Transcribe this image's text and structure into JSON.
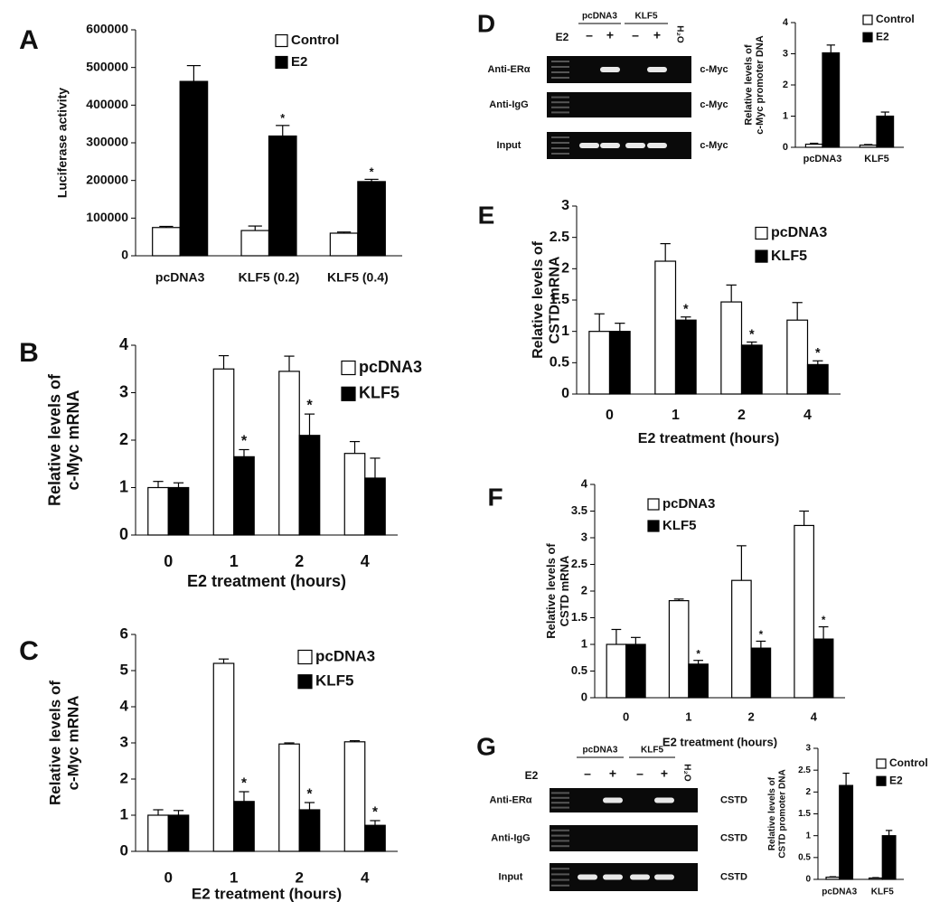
{
  "chart_data": [
    {
      "type": "bar",
      "panel": "A",
      "ylabel": [
        "Luciferase activity"
      ],
      "categories": [
        "pcDNA3",
        "KLF5 (0.2)",
        "KLF5 (0.4)"
      ],
      "series": [
        {
          "name": "Control",
          "color": "#ffffff",
          "values": [
            75000,
            67000,
            60000
          ],
          "errors": [
            3000,
            12000,
            3000
          ],
          "notes": [
            null,
            null,
            null
          ]
        },
        {
          "name": "E2",
          "color": "#000000",
          "values": [
            463000,
            318000,
            197000
          ],
          "errors": [
            42000,
            28000,
            6000
          ],
          "notes": [
            null,
            "*",
            "*"
          ]
        }
      ],
      "ylim": [
        0,
        600000
      ],
      "yticks": [
        0,
        100000,
        200000,
        300000,
        400000,
        500000,
        600000
      ]
    },
    {
      "type": "bar",
      "panel": "B",
      "ylabel": [
        "Relative levels of",
        "c-Myc mRNA"
      ],
      "xlabel": "E2 treatment (hours)",
      "categories": [
        "0",
        "1",
        "2",
        "4"
      ],
      "series": [
        {
          "name": "pcDNA3",
          "color": "#ffffff",
          "values": [
            1,
            3.5,
            3.45,
            1.72
          ],
          "errors": [
            0.13,
            0.28,
            0.32,
            0.25
          ],
          "notes": [
            null,
            null,
            null,
            null
          ]
        },
        {
          "name": "KLF5",
          "color": "#000000",
          "values": [
            1,
            1.65,
            2.1,
            1.2
          ],
          "errors": [
            0.1,
            0.15,
            0.45,
            0.42
          ],
          "notes": [
            null,
            "*",
            "*",
            null
          ]
        }
      ],
      "ylim": [
        0,
        4
      ],
      "yticks": [
        0,
        1,
        2,
        3,
        4
      ]
    },
    {
      "type": "bar",
      "panel": "C",
      "ylabel": [
        "Relative levels of",
        "c-Myc mRNA"
      ],
      "xlabel": "E2 treatment (hours)",
      "categories": [
        "0",
        "1",
        "2",
        "4"
      ],
      "series": [
        {
          "name": "pcDNA3",
          "color": "#ffffff",
          "values": [
            1,
            5.2,
            2.97,
            3.03
          ],
          "errors": [
            0.15,
            0.12,
            0.03,
            0.03
          ],
          "notes": [
            null,
            null,
            null,
            null
          ]
        },
        {
          "name": "KLF5",
          "color": "#000000",
          "values": [
            1,
            1.38,
            1.15,
            0.72
          ],
          "errors": [
            0.13,
            0.27,
            0.2,
            0.13
          ],
          "notes": [
            null,
            "*",
            "*",
            "*"
          ]
        }
      ],
      "ylim": [
        0,
        6
      ],
      "yticks": [
        0,
        1,
        2,
        3,
        4,
        5,
        6
      ]
    },
    {
      "type": "bar",
      "panel": "D",
      "ylabel": [
        "Relative levels of",
        "c-Myc promoter DNA"
      ],
      "categories": [
        "pcDNA3",
        "KLF5"
      ],
      "series": [
        {
          "name": "Control",
          "color": "#ffffff",
          "values": [
            0.1,
            0.07
          ],
          "errors": [
            0.03,
            0.02
          ],
          "notes": [
            null,
            null
          ]
        },
        {
          "name": "E2",
          "color": "#000000",
          "values": [
            3.03,
            1
          ],
          "errors": [
            0.25,
            0.13
          ],
          "notes": [
            null,
            null
          ]
        }
      ],
      "ylim": [
        0,
        4
      ],
      "yticks": [
        0,
        1,
        2,
        3,
        4
      ]
    },
    {
      "type": "bar",
      "panel": "E",
      "ylabel": [
        "Relative levels of",
        "CSTD mRNA"
      ],
      "xlabel": "E2 treatment (hours)",
      "categories": [
        "0",
        "1",
        "2",
        "4"
      ],
      "series": [
        {
          "name": "pcDNA3",
          "color": "#ffffff",
          "values": [
            1,
            2.12,
            1.47,
            1.18
          ],
          "errors": [
            0.28,
            0.28,
            0.27,
            0.28
          ],
          "notes": [
            null,
            null,
            null,
            null
          ]
        },
        {
          "name": "KLF5",
          "color": "#000000",
          "values": [
            1,
            1.18,
            0.78,
            0.47
          ],
          "errors": [
            0.13,
            0.05,
            0.05,
            0.06
          ],
          "notes": [
            null,
            "*",
            "*",
            "*"
          ]
        }
      ],
      "ylim": [
        0,
        3
      ],
      "yticks": [
        0,
        0.5,
        1,
        1.5,
        2,
        2.5,
        3
      ]
    },
    {
      "type": "bar",
      "panel": "F",
      "ylabel": [
        "Relative levels of",
        "CSTD mRNA"
      ],
      "xlabel": "E2 treatment (hours)",
      "categories": [
        "0",
        "1",
        "2",
        "4"
      ],
      "series": [
        {
          "name": "pcDNA3",
          "color": "#ffffff",
          "values": [
            1,
            1.82,
            2.2,
            3.23
          ],
          "errors": [
            0.28,
            0.03,
            0.65,
            0.27
          ],
          "notes": [
            null,
            null,
            null,
            null
          ]
        },
        {
          "name": "KLF5",
          "color": "#000000",
          "values": [
            1,
            0.63,
            0.93,
            1.1
          ],
          "errors": [
            0.13,
            0.07,
            0.13,
            0.23
          ],
          "notes": [
            null,
            "*",
            "*",
            "*"
          ]
        }
      ],
      "ylim": [
        0,
        4
      ],
      "yticks": [
        0,
        0.5,
        1,
        1.5,
        2,
        2.5,
        3,
        3.5,
        4
      ]
    },
    {
      "type": "bar",
      "panel": "G",
      "ylabel": [
        "Relative levels of",
        "CSTD promoter DNA"
      ],
      "categories": [
        "pcDNA3",
        "KLF5"
      ],
      "series": [
        {
          "name": "Control",
          "color": "#ffffff",
          "values": [
            0.05,
            0.03
          ],
          "errors": [
            0.01,
            0.01
          ],
          "notes": [
            null,
            null
          ]
        },
        {
          "name": "E2",
          "color": "#000000",
          "values": [
            2.15,
            1
          ],
          "errors": [
            0.28,
            0.12
          ],
          "notes": [
            null,
            null
          ]
        }
      ],
      "ylim": [
        0,
        3
      ],
      "yticks": [
        0,
        0.5,
        1,
        1.5,
        2,
        2.5,
        3
      ]
    }
  ],
  "gels": [
    {
      "treatment": "E2",
      "groups": [
        "pcDNA3",
        "KLF5"
      ],
      "signs": [
        "–",
        "+",
        "–",
        "+"
      ],
      "control": "H₂O",
      "rows": [
        {
          "label": "Anti-ERα",
          "target": "c-Myc",
          "bands": [
            false,
            true,
            false,
            true,
            false
          ]
        },
        {
          "label": "Anti-IgG",
          "target": "c-Myc",
          "bands": [
            false,
            false,
            false,
            false,
            false
          ]
        },
        {
          "label": "Input",
          "target": "c-Myc",
          "bands": [
            true,
            true,
            true,
            true,
            false
          ]
        }
      ]
    },
    {
      "treatment": "E2",
      "groups": [
        "pcDNA3",
        "KLF5"
      ],
      "signs": [
        "–",
        "+",
        "–",
        "+"
      ],
      "control": "H₂O",
      "rows": [
        {
          "label": "Anti-ERα",
          "target": "CSTD",
          "bands": [
            false,
            true,
            false,
            true,
            false
          ]
        },
        {
          "label": "Anti-IgG",
          "target": "CSTD",
          "bands": [
            false,
            false,
            false,
            false,
            false
          ]
        },
        {
          "label": "Input",
          "target": "CSTD",
          "bands": [
            true,
            true,
            true,
            true,
            false
          ]
        }
      ]
    }
  ]
}
